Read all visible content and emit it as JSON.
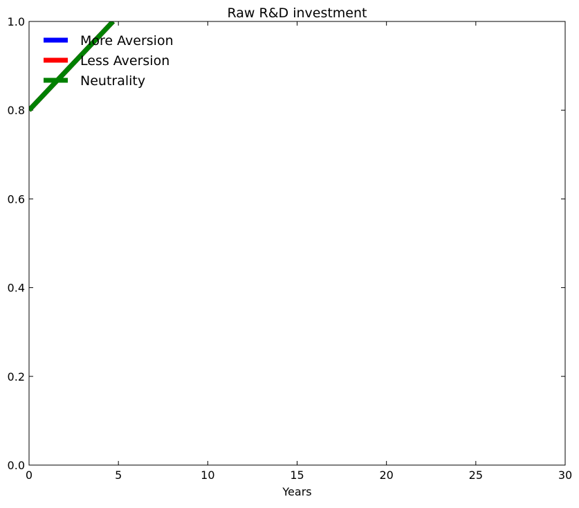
{
  "chart_data": {
    "type": "line",
    "title": "Raw R&D investment",
    "xlabel": "Years",
    "ylabel": "",
    "xlim": [
      0,
      30
    ],
    "ylim": [
      0,
      1.0
    ],
    "x_ticks": [
      0,
      5,
      10,
      15,
      20,
      25,
      30
    ],
    "x_tick_labels": [
      "0",
      "5",
      "10",
      "15",
      "20",
      "25",
      "30"
    ],
    "y_ticks": [
      0.0,
      0.2,
      0.4,
      0.6,
      0.8,
      1.0
    ],
    "y_tick_labels": [
      "0.0",
      "0.2",
      "0.4",
      "0.6",
      "0.8",
      "1.0"
    ],
    "grid": false,
    "legend_position": "top-left",
    "series": [
      {
        "name": "More Aversion",
        "color": "#0000ff",
        "x": [
          0,
          4.7
        ],
        "y": [
          0.8,
          1.0
        ]
      },
      {
        "name": "Less Aversion",
        "color": "#ff0000",
        "x": [
          0,
          4.7
        ],
        "y": [
          0.8,
          1.0
        ]
      },
      {
        "name": "Neutrality",
        "color": "#008000",
        "x": [
          0,
          4.7
        ],
        "y": [
          0.8,
          1.0
        ]
      }
    ]
  }
}
